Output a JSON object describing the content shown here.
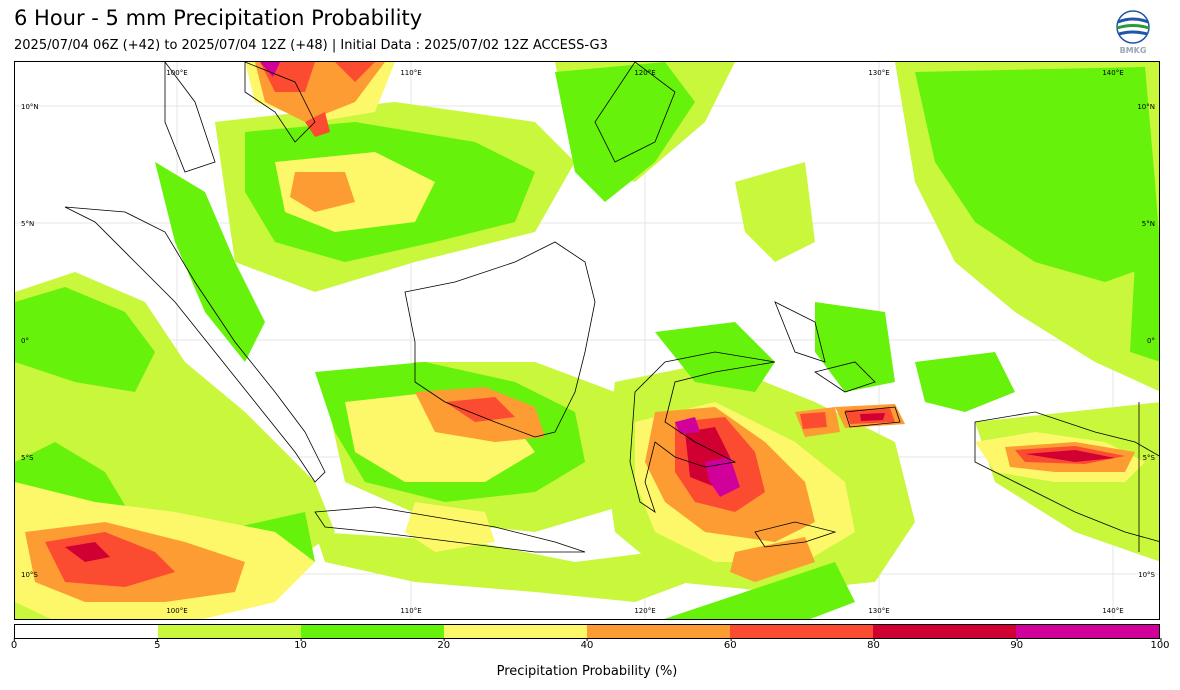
{
  "header": {
    "title": "6 Hour - 5 mm Precipitation Probability",
    "subtitle": "2025/07/04 06Z (+42) to 2025/07/04 12Z (+48) | Initial Data : 2025/07/02 12Z ACCESS-G3",
    "logo_text": "BMKG"
  },
  "map": {
    "lon_labels_top": [
      "100°E",
      "110°E",
      "120°E",
      "130°E",
      "140°E"
    ],
    "lon_labels_bottom": [
      "100°E",
      "110°E",
      "120°E",
      "130°E",
      "140°E"
    ],
    "lat_labels_left": [
      "10°N",
      "5°N",
      "0°",
      "5°S",
      "10°S"
    ],
    "lat_labels_right": [
      "10°N",
      "5°N",
      "0°",
      "5°S",
      "10°S"
    ]
  },
  "colorbar": {
    "label": "Precipitation Probability (%)",
    "bins": [
      {
        "from": 0,
        "to": 5,
        "color": "#ffffff"
      },
      {
        "from": 5,
        "to": 10,
        "color": "#c8f73c"
      },
      {
        "from": 10,
        "to": 20,
        "color": "#66f20a"
      },
      {
        "from": 20,
        "to": 40,
        "color": "#fcf86a"
      },
      {
        "from": 40,
        "to": 60,
        "color": "#fd9c33"
      },
      {
        "from": 60,
        "to": 80,
        "color": "#fb4c32"
      },
      {
        "from": 80,
        "to": 90,
        "color": "#d00033"
      },
      {
        "from": 90,
        "to": 100,
        "color": "#d2009a"
      }
    ],
    "tick_labels": [
      "0",
      "5",
      "10",
      "20",
      "40",
      "60",
      "80",
      "90",
      "100"
    ]
  }
}
